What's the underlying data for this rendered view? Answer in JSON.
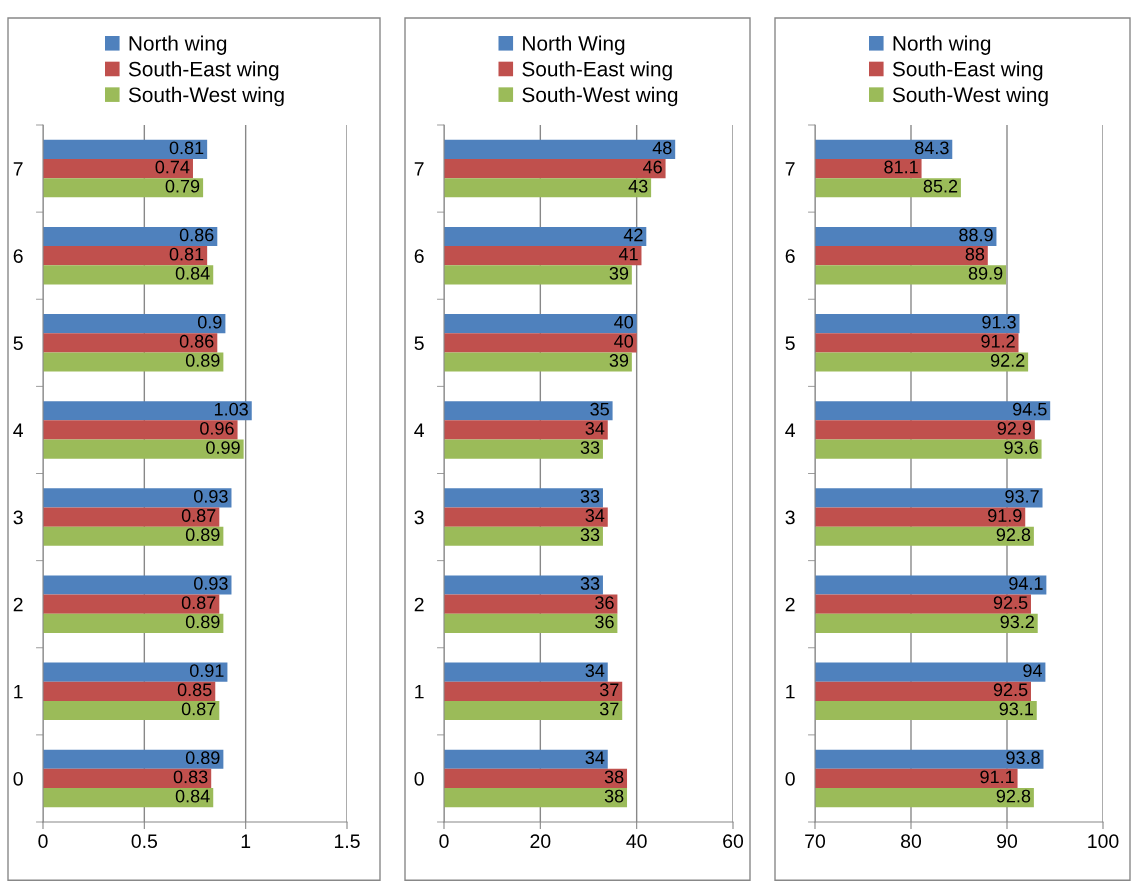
{
  "chart_data": [
    {
      "type": "bar",
      "orientation": "horizontal",
      "categories": [
        "7",
        "6",
        "5",
        "4",
        "3",
        "2",
        "1",
        "0"
      ],
      "xlim": [
        0,
        1.5
      ],
      "xticks": [
        0,
        0.5,
        1,
        1.5
      ],
      "grid": "x",
      "legend": "top",
      "data_labels": true,
      "series": [
        {
          "name": "North wing",
          "color": "#4f81bd",
          "values": [
            0.81,
            0.86,
            0.9,
            1.03,
            0.93,
            0.93,
            0.91,
            0.89
          ]
        },
        {
          "name": "South-East wing",
          "color": "#c0504d",
          "values": [
            0.74,
            0.81,
            0.86,
            0.96,
            0.87,
            0.87,
            0.85,
            0.83
          ]
        },
        {
          "name": "South-West wing",
          "color": "#9bbb59",
          "values": [
            0.79,
            0.84,
            0.89,
            0.99,
            0.89,
            0.89,
            0.87,
            0.84
          ]
        }
      ]
    },
    {
      "type": "bar",
      "orientation": "horizontal",
      "categories": [
        "7",
        "6",
        "5",
        "4",
        "3",
        "2",
        "1",
        "0"
      ],
      "xlim": [
        0,
        60
      ],
      "xticks": [
        0,
        20,
        40,
        60
      ],
      "grid": "x",
      "legend": "top",
      "data_labels": true,
      "series": [
        {
          "name": "North Wing",
          "color": "#4f81bd",
          "values": [
            48,
            42,
            40,
            35,
            33,
            33,
            34,
            34
          ]
        },
        {
          "name": "South-East wing",
          "color": "#c0504d",
          "values": [
            46,
            41,
            40,
            34,
            34,
            36,
            37,
            38
          ]
        },
        {
          "name": "South-West wing",
          "color": "#9bbb59",
          "values": [
            43,
            39,
            39,
            33,
            33,
            36,
            37,
            38
          ]
        }
      ]
    },
    {
      "type": "bar",
      "orientation": "horizontal",
      "categories": [
        "7",
        "6",
        "5",
        "4",
        "3",
        "2",
        "1",
        "0"
      ],
      "xlim": [
        70,
        100
      ],
      "xticks": [
        70,
        80,
        90,
        100
      ],
      "grid": "x",
      "legend": "top",
      "data_labels": true,
      "series": [
        {
          "name": "North wing",
          "color": "#4f81bd",
          "values": [
            84.3,
            88.9,
            91.3,
            94.5,
            93.7,
            94.1,
            94,
            93.8
          ]
        },
        {
          "name": "South-East wing",
          "color": "#c0504d",
          "values": [
            81.1,
            88,
            91.2,
            92.9,
            91.9,
            92.5,
            92.5,
            91.1
          ]
        },
        {
          "name": "South-West wing",
          "color": "#9bbb59",
          "values": [
            85.2,
            89.9,
            92.2,
            93.6,
            92.8,
            93.2,
            93.1,
            92.8
          ]
        }
      ]
    }
  ]
}
